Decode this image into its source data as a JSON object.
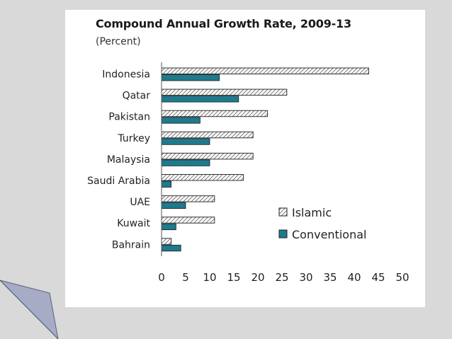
{
  "chart_data": {
    "type": "bar",
    "orientation": "horizontal",
    "title": "Compound Annual Growth Rate, 2009-13",
    "subtitle": "(Percent)",
    "categories": [
      "Indonesia",
      "Qatar",
      "Pakistan",
      "Turkey",
      "Malaysia",
      "Saudi Arabia",
      "UAE",
      "Kuwait",
      "Bahrain"
    ],
    "series": [
      {
        "name": "Islamic",
        "pattern": "hatched",
        "color": "#555555",
        "values": [
          43,
          26,
          22,
          19,
          19,
          17,
          11,
          11,
          2
        ]
      },
      {
        "name": "Conventional",
        "color": "#1f7a8c",
        "values": [
          12,
          16,
          8,
          10,
          10,
          2,
          5,
          3,
          4
        ]
      }
    ],
    "xlim": [
      0,
      50
    ],
    "xticks": [
      "0",
      "5",
      "10",
      "15",
      "20",
      "25",
      "30",
      "35",
      "40",
      "45",
      "50"
    ],
    "xlabel": "",
    "ylabel": "",
    "grid": false,
    "legend": "bottom-right"
  },
  "colors": {
    "background": "#d9d9d9",
    "card": "#ffffff",
    "conventional": "#1f7a8c",
    "islamic_hatch": "#555555",
    "fold": "#a6acc6"
  }
}
